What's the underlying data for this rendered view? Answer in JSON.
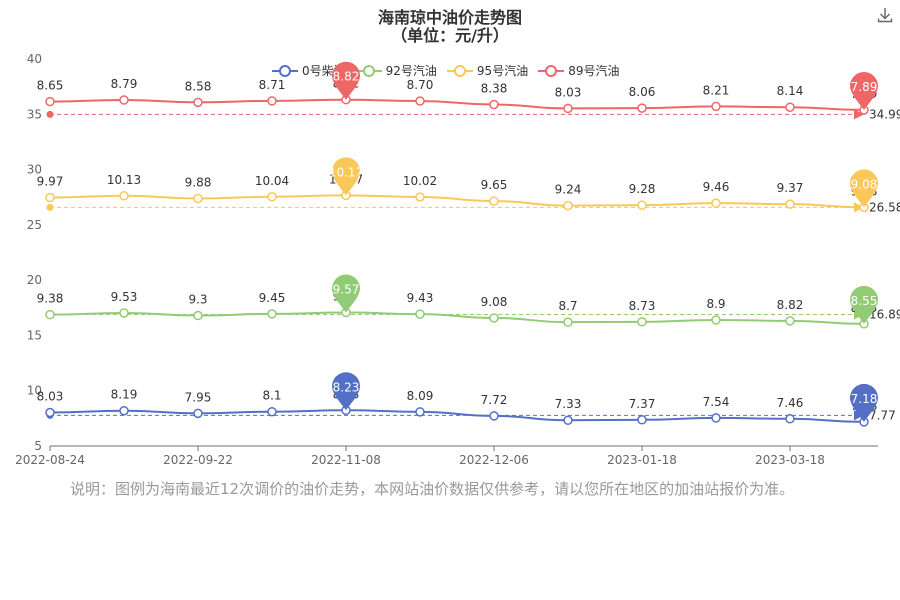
{
  "title": "海南琼中油价走势图",
  "subtitle": "（单位：元/升）",
  "note": "说明：图例为海南最近12次调价的油价走势，本网站油价数据仅供参考，请以您所在地区的加油站报价为准。",
  "icons": {
    "download": "download-icon"
  },
  "colors": {
    "0号柴油": "#5470c6",
    "92号汽油": "#91cc75",
    "95号汽油": "#fac858",
    "89号汽油": "#ee6666"
  },
  "chart_data": {
    "type": "line",
    "x": [
      "2022-08-24",
      "2022-09-08",
      "2022-09-22",
      "2022-10-08",
      "2022-11-08",
      "2022-11-22",
      "2022-12-06",
      "2022-12-20",
      "2023-01-18",
      "2023-02-03",
      "2023-03-18",
      "2023-04-04"
    ],
    "x_ticks": [
      "2022-08-24",
      "2022-09-22",
      "2022-11-08",
      "2022-12-06",
      "2023-01-18",
      "2023-03-18"
    ],
    "y_ticks": [
      5,
      10,
      15,
      20,
      25,
      30,
      35,
      40
    ],
    "ylim": [
      5,
      40
    ],
    "grid": false,
    "legend_position": "top",
    "series": [
      {
        "name": "0号柴油",
        "values": [
          8.03,
          8.19,
          7.95,
          8.1,
          8.23,
          8.09,
          7.72,
          7.33,
          7.37,
          7.54,
          7.46,
          7.18
        ],
        "offset": 0,
        "max_label": "8.23",
        "min_label": "7.18",
        "avg_label": "7.77"
      },
      {
        "name": "92号汽油",
        "values": [
          9.38,
          9.53,
          9.3,
          9.45,
          9.57,
          9.43,
          9.08,
          8.7,
          8.73,
          8.9,
          8.82,
          8.55
        ],
        "offset": 7.5,
        "max_label": "9.57",
        "min_label": "8.55",
        "avg_label": "16.89"
      },
      {
        "name": "95号汽油",
        "values": [
          9.97,
          10.13,
          9.88,
          10.04,
          10.17,
          10.02,
          9.65,
          9.24,
          9.28,
          9.46,
          9.37,
          9.08
        ],
        "offset": 17.5,
        "max_label": "10.17",
        "min_label": "9.08",
        "avg_label": "26.58"
      },
      {
        "name": "89号汽油",
        "values": [
          8.65,
          8.79,
          8.58,
          8.71,
          8.82,
          8.7,
          8.38,
          8.03,
          8.06,
          8.21,
          8.14,
          7.89
        ],
        "offset": 27.5,
        "max_label": "8.82",
        "min_label": "7.89",
        "avg_label": "34.99"
      }
    ]
  }
}
